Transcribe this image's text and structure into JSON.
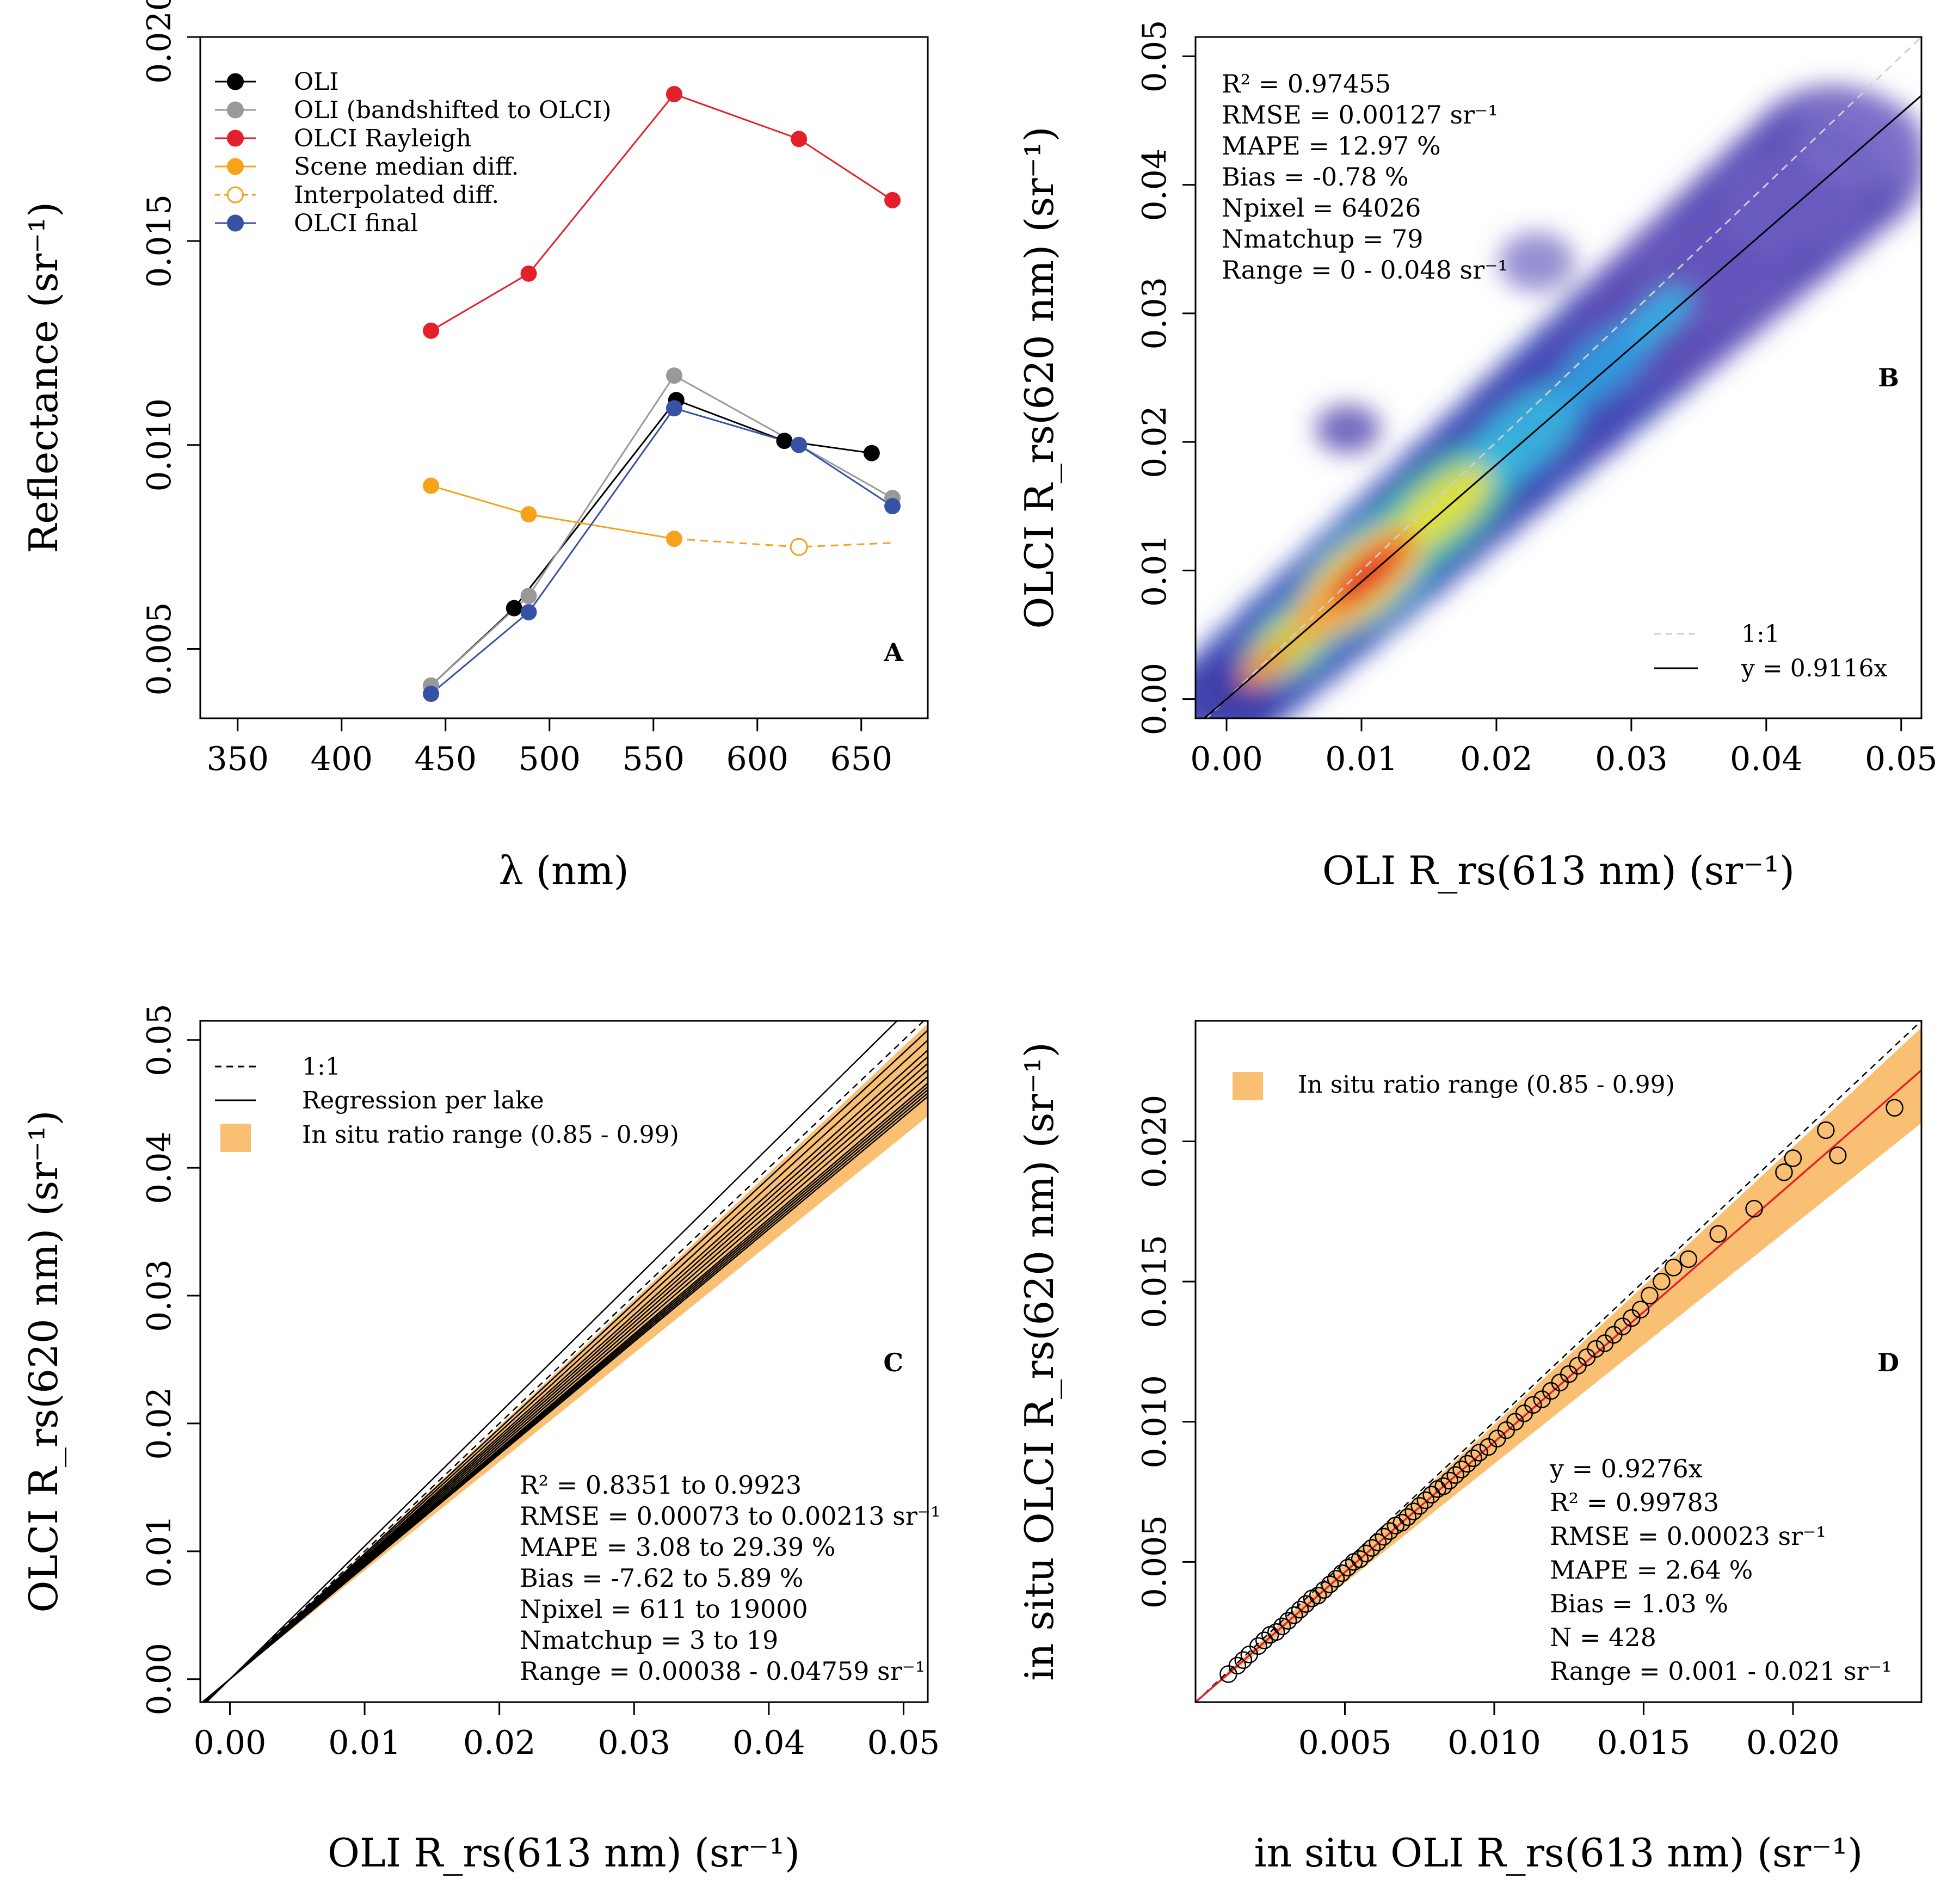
{
  "chart_data": [
    {
      "panel": "A",
      "type": "line",
      "xlabel": "λ (nm)",
      "ylabel": "Reflectance (sr⁻¹)",
      "xlim": [
        332,
        682
      ],
      "ylim": [
        0.0033,
        0.02
      ],
      "xticks": [
        350,
        400,
        450,
        500,
        550,
        600,
        650
      ],
      "yticks": [
        0.005,
        0.01,
        0.015,
        0.02
      ],
      "xtick_labels": [
        "350",
        "400",
        "450",
        "500",
        "550",
        "600",
        "650"
      ],
      "ytick_labels": [
        "0.005",
        "0.010",
        "0.015",
        "0.020"
      ],
      "legend_position": "top-left",
      "series": [
        {
          "name": "OLI",
          "color": "#000000",
          "style": "solid",
          "x": [
            443,
            483,
            561,
            613,
            655
          ],
          "y": [
            0.0041,
            0.006,
            0.0111,
            0.0101,
            0.0098
          ]
        },
        {
          "name": "OLI (bandshifted to OLCI)",
          "color": "#999999",
          "style": "solid",
          "x": [
            443,
            490,
            560,
            620,
            665
          ],
          "y": [
            0.0041,
            0.0063,
            0.0117,
            0.01,
            0.0087
          ]
        },
        {
          "name": "OLCI Rayleigh",
          "color": "#e4202b",
          "style": "solid",
          "x": [
            443,
            490,
            560,
            620,
            665
          ],
          "y": [
            0.0128,
            0.0142,
            0.0186,
            0.0175,
            0.016
          ]
        },
        {
          "name": "Scene median diff.",
          "color": "#f7a21b",
          "style": "solid",
          "x": [
            443,
            490,
            560
          ],
          "y": [
            0.009,
            0.0083,
            0.0077
          ]
        },
        {
          "name": "Interpolated diff.",
          "color": "#f7a21b",
          "style": "dashed",
          "x": [
            560,
            620,
            665
          ],
          "y": [
            0.0077,
            0.0075,
            0.0076
          ],
          "open_markers_x": [
            620
          ]
        },
        {
          "name": "OLCI final",
          "color": "#3752a4",
          "style": "solid",
          "x": [
            443,
            490,
            560,
            620,
            665
          ],
          "y": [
            0.0039,
            0.0059,
            0.0109,
            0.01,
            0.0085
          ]
        }
      ]
    },
    {
      "panel": "B",
      "type": "heatmap",
      "xlabel": "OLI R_rs(613 nm) (sr⁻¹)",
      "ylabel": "OLCI R_rs(620 nm) (sr⁻¹)",
      "xlim": [
        -0.0023,
        0.0515
      ],
      "ylim": [
        -0.0015,
        0.0515
      ],
      "xticks": [
        0,
        0.01,
        0.02,
        0.03,
        0.04,
        0.05
      ],
      "yticks": [
        0,
        0.01,
        0.02,
        0.03,
        0.04,
        0.05
      ],
      "xtick_labels": [
        "0.00",
        "0.01",
        "0.02",
        "0.03",
        "0.04",
        "0.05"
      ],
      "ytick_labels": [
        "0.00",
        "0.01",
        "0.02",
        "0.03",
        "0.04",
        "0.05"
      ],
      "slope": 0.9116,
      "legend_position": "bottom-right",
      "legend": [
        "1:1",
        "y = 0.9116x"
      ],
      "stats": [
        "R² = 0.97455",
        "RMSE = 0.00127  sr⁻¹",
        "MAPE = 12.97  %",
        "Bias = -0.78  %",
        "Npixel = 64026",
        "Nmatchup = 79",
        "Range = 0 - 0.048  sr⁻¹"
      ]
    },
    {
      "panel": "C",
      "type": "line",
      "xlabel": "OLI R_rs(613 nm) (sr⁻¹)",
      "ylabel": "OLCI R_rs(620 nm) (sr⁻¹)",
      "xlim": [
        -0.0022,
        0.0518
      ],
      "ylim": [
        -0.0018,
        0.0515
      ],
      "xticks": [
        0,
        0.01,
        0.02,
        0.03,
        0.04,
        0.05
      ],
      "yticks": [
        0,
        0.01,
        0.02,
        0.03,
        0.04,
        0.05
      ],
      "xtick_labels": [
        "0.00",
        "0.01",
        "0.02",
        "0.03",
        "0.04",
        "0.05"
      ],
      "ytick_labels": [
        "0.00",
        "0.01",
        "0.02",
        "0.03",
        "0.04",
        "0.05"
      ],
      "band_ratio_range": [
        0.85,
        0.99
      ],
      "lake_slopes": [
        1.04,
        0.98,
        0.965,
        0.95,
        0.94,
        0.93,
        0.92,
        0.91,
        0.9,
        0.895,
        0.89,
        0.885,
        0.88
      ],
      "legend_position": "top-left",
      "legend": [
        "1:1",
        "Regression per lake",
        "In situ ratio range (0.85 - 0.99)"
      ],
      "stats": [
        "R² = 0.8351  to  0.9923",
        "RMSE = 0.00073  to  0.00213  sr⁻¹",
        "MAPE = 3.08  to  29.39  %",
        "Bias = -7.62  to  5.89  %",
        "Npixel = 611  to  19000",
        "Nmatchup = 3  to  19",
        "Range = 0.00038 - 0.04759  sr⁻¹"
      ]
    },
    {
      "panel": "D",
      "type": "scatter",
      "xlabel": "in situ OLI R_rs(613 nm) (sr⁻¹)",
      "ylabel": "in situ OLCI R_rs(620 nm) (sr⁻¹)",
      "xlim": [
        0,
        0.0243
      ],
      "ylim": [
        0,
        0.0243
      ],
      "xticks": [
        0.005,
        0.01,
        0.015,
        0.02
      ],
      "yticks": [
        0.005,
        0.01,
        0.015,
        0.02
      ],
      "xtick_labels": [
        "0.005",
        "0.010",
        "0.015",
        "0.020"
      ],
      "ytick_labels": [
        "0.005",
        "0.010",
        "0.015",
        "0.020"
      ],
      "band_ratio_range": [
        0.85,
        0.99
      ],
      "slope": 0.9276,
      "legend_position": "top-left",
      "legend": [
        "In situ ratio range (0.85 - 0.99)"
      ],
      "points_x": [
        0.0011,
        0.0014,
        0.0016,
        0.0018,
        0.0021,
        0.0023,
        0.0025,
        0.0027,
        0.0029,
        0.0031,
        0.0033,
        0.0035,
        0.0037,
        0.0039,
        0.0041,
        0.0043,
        0.0045,
        0.0047,
        0.0049,
        0.0051,
        0.0053,
        0.0055,
        0.0057,
        0.0059,
        0.0061,
        0.0063,
        0.0065,
        0.0067,
        0.0069,
        0.0071,
        0.0073,
        0.0075,
        0.0077,
        0.0079,
        0.0081,
        0.0083,
        0.0085,
        0.0087,
        0.0089,
        0.0091,
        0.0093,
        0.0095,
        0.0098,
        0.0101,
        0.0104,
        0.0107,
        0.011,
        0.0113,
        0.0116,
        0.0119,
        0.0122,
        0.0125,
        0.0128,
        0.0131,
        0.0134,
        0.0137,
        0.014,
        0.0143,
        0.0146,
        0.0149,
        0.0152,
        0.0156,
        0.016,
        0.0165,
        0.0175,
        0.0187,
        0.0197,
        0.02,
        0.0211,
        0.0215,
        0.0234
      ],
      "points_y": [
        0.001,
        0.0013,
        0.0015,
        0.0017,
        0.002,
        0.0022,
        0.0024,
        0.0025,
        0.0027,
        0.0029,
        0.0031,
        0.0033,
        0.0035,
        0.0037,
        0.0038,
        0.004,
        0.0042,
        0.0044,
        0.0046,
        0.0048,
        0.005,
        0.0051,
        0.0053,
        0.0055,
        0.0057,
        0.0059,
        0.0061,
        0.0063,
        0.0064,
        0.0066,
        0.0068,
        0.007,
        0.0072,
        0.0074,
        0.0076,
        0.0077,
        0.0079,
        0.0081,
        0.0083,
        0.0085,
        0.0087,
        0.0089,
        0.0091,
        0.0094,
        0.0097,
        0.01,
        0.0103,
        0.0106,
        0.0108,
        0.0111,
        0.0114,
        0.0117,
        0.012,
        0.0123,
        0.0126,
        0.0128,
        0.0131,
        0.0134,
        0.0137,
        0.014,
        0.0145,
        0.015,
        0.0155,
        0.0158,
        0.0167,
        0.0176,
        0.0189,
        0.0194,
        0.0204,
        0.0195,
        0.0212
      ],
      "stats": [
        "y = 0.9276x",
        "R² = 0.99783",
        "RMSE = 0.00023  sr⁻¹",
        "MAPE = 2.64  %",
        "Bias = 1.03  %",
        "N = 428",
        "Range = 0.001 - 0.021  sr⁻¹"
      ]
    }
  ]
}
